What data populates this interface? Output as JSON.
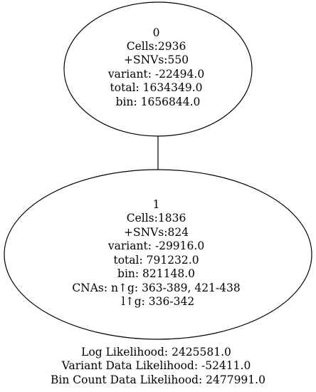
{
  "nodes": [
    {
      "lines": [
        "0",
        "Cells:2936",
        "+SNVs:550",
        "variant: -22494.0",
        "total: 1634349.0",
        "bin: 1656844.0"
      ]
    },
    {
      "lines": [
        "1",
        "Cells:1836",
        "+SNVs:824",
        "variant: -29916.0",
        "total: 791232.0",
        "bin: 821148.0",
        "CNAs: n↑g: 363-389, 421-438",
        "l↑g: 336-342"
      ]
    }
  ],
  "edges": [
    {
      "from": "0",
      "to": "1"
    }
  ],
  "footer": {
    "log_likelihood": "Log Likelihood: 2425581.0",
    "variant_likelihood": "Variant Data Likelihood: -52411.0",
    "bin_count_likelihood": "Bin Count Data Likelihood: 2477991.0"
  }
}
